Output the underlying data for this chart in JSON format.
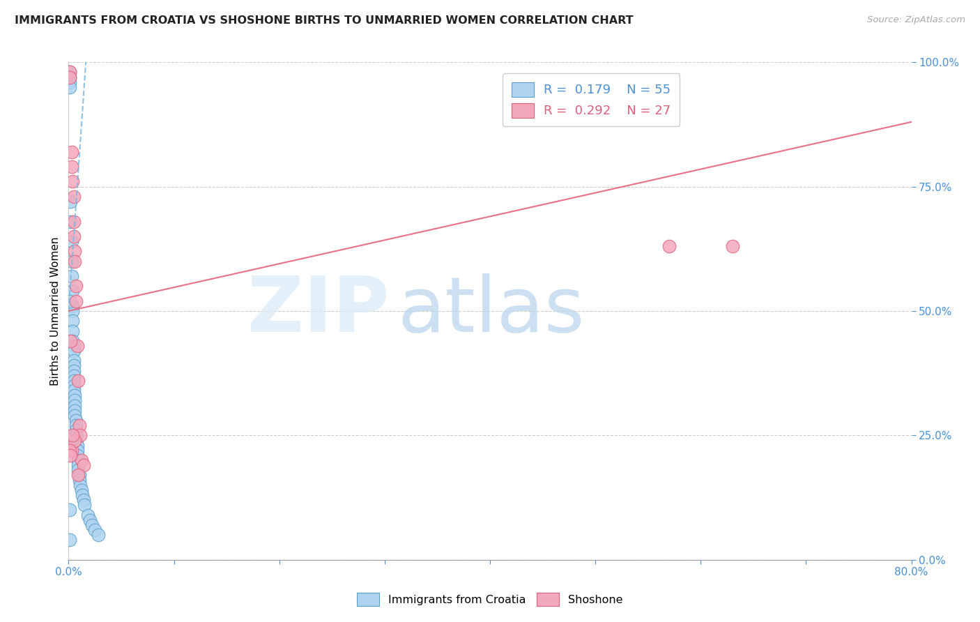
{
  "title": "IMMIGRANTS FROM CROATIA VS SHOSHONE BIRTHS TO UNMARRIED WOMEN CORRELATION CHART",
  "source": "Source: ZipAtlas.com",
  "ylabel": "Births to Unmarried Women",
  "xlim": [
    0.0,
    0.8
  ],
  "ylim": [
    0.0,
    1.0
  ],
  "legend_blue_r": 0.179,
  "legend_blue_n": 55,
  "legend_pink_r": 0.292,
  "legend_pink_n": 27,
  "blue_fill": "#aed4f0",
  "blue_edge": "#5a9ec8",
  "pink_fill": "#f4a8bc",
  "pink_edge": "#e0607a",
  "blue_line_color": "#7ab8e0",
  "pink_line_color": "#e8607a",
  "grid_color": "#cccccc",
  "axis_color": "#4a90d9",
  "blue_pts_x": [
    0.001,
    0.001,
    0.001,
    0.001,
    0.002,
    0.002,
    0.003,
    0.003,
    0.003,
    0.004,
    0.004,
    0.004,
    0.004,
    0.004,
    0.004,
    0.005,
    0.005,
    0.005,
    0.005,
    0.005,
    0.005,
    0.005,
    0.005,
    0.005,
    0.006,
    0.006,
    0.006,
    0.006,
    0.006,
    0.007,
    0.007,
    0.007,
    0.007,
    0.007,
    0.008,
    0.008,
    0.008,
    0.009,
    0.009,
    0.009,
    0.01,
    0.01,
    0.011,
    0.012,
    0.013,
    0.014,
    0.015,
    0.018,
    0.02,
    0.022,
    0.025,
    0.028,
    0.001,
    0.001,
    0.001
  ],
  "blue_pts_y": [
    0.98,
    0.97,
    0.96,
    0.95,
    0.72,
    0.68,
    0.64,
    0.6,
    0.57,
    0.54,
    0.51,
    0.5,
    0.48,
    0.46,
    0.44,
    0.43,
    0.42,
    0.4,
    0.39,
    0.38,
    0.37,
    0.36,
    0.35,
    0.34,
    0.33,
    0.32,
    0.31,
    0.3,
    0.29,
    0.28,
    0.27,
    0.26,
    0.25,
    0.24,
    0.23,
    0.22,
    0.21,
    0.2,
    0.19,
    0.18,
    0.17,
    0.16,
    0.15,
    0.14,
    0.13,
    0.12,
    0.11,
    0.09,
    0.08,
    0.07,
    0.06,
    0.05,
    0.52,
    0.1,
    0.04
  ],
  "pink_pts_x": [
    0.001,
    0.001,
    0.003,
    0.003,
    0.004,
    0.005,
    0.005,
    0.005,
    0.006,
    0.006,
    0.007,
    0.007,
    0.008,
    0.009,
    0.01,
    0.011,
    0.012,
    0.014,
    0.002,
    0.003,
    0.006,
    0.001,
    0.002,
    0.004,
    0.009,
    0.57,
    0.63
  ],
  "pink_pts_y": [
    0.98,
    0.97,
    0.82,
    0.79,
    0.76,
    0.73,
    0.68,
    0.65,
    0.62,
    0.6,
    0.55,
    0.52,
    0.43,
    0.36,
    0.27,
    0.25,
    0.2,
    0.19,
    0.44,
    0.22,
    0.24,
    0.22,
    0.21,
    0.25,
    0.17,
    0.63,
    0.63
  ],
  "blue_line_x": [
    0.0,
    0.018
  ],
  "blue_line_y": [
    0.5,
    1.05
  ],
  "pink_line_x": [
    0.0,
    0.8
  ],
  "pink_line_y": [
    0.5,
    0.88
  ]
}
